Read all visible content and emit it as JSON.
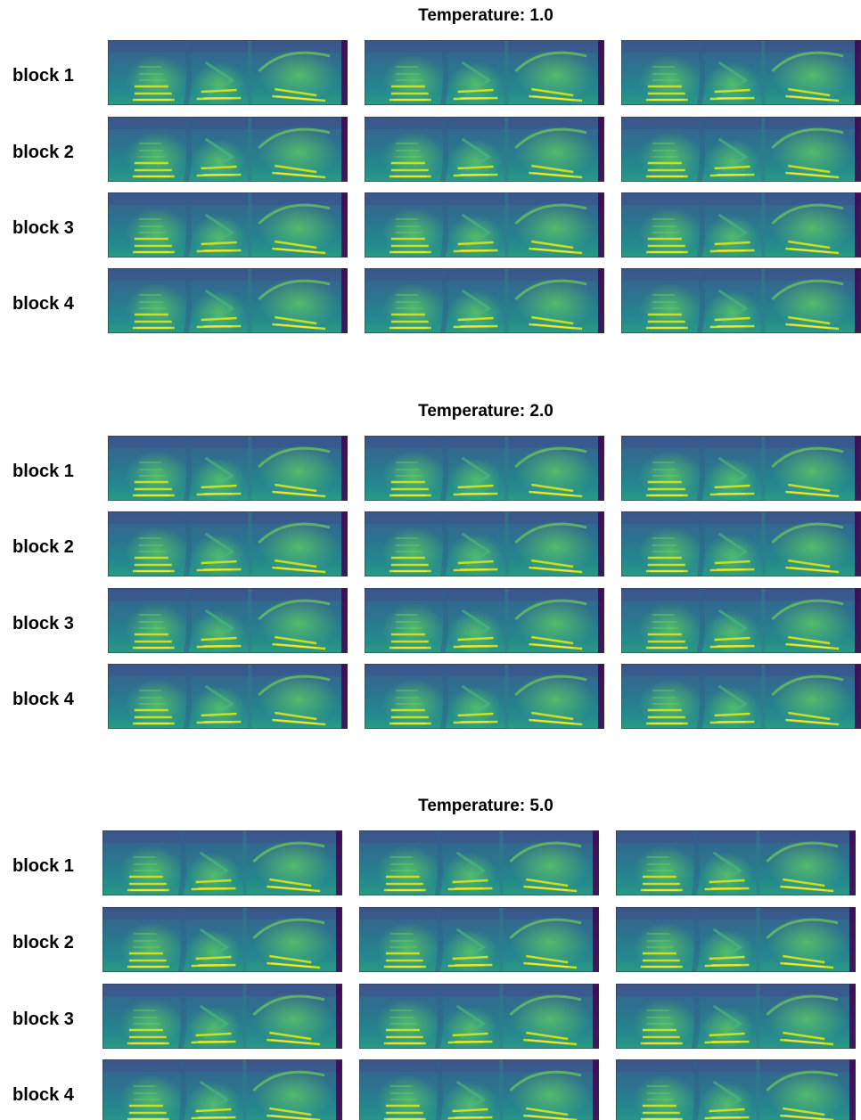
{
  "sections": [
    {
      "title": "Temperature: 1.0",
      "rows": [
        "block 1",
        "block 2",
        "block 3",
        "block 4"
      ]
    },
    {
      "title": "Temperature: 2.0",
      "rows": [
        "block 1",
        "block 2",
        "block 3",
        "block 4"
      ]
    },
    {
      "title": "Temperature: 5.0",
      "rows": [
        "block 1",
        "block 2",
        "block 3",
        "block 4"
      ]
    }
  ]
}
